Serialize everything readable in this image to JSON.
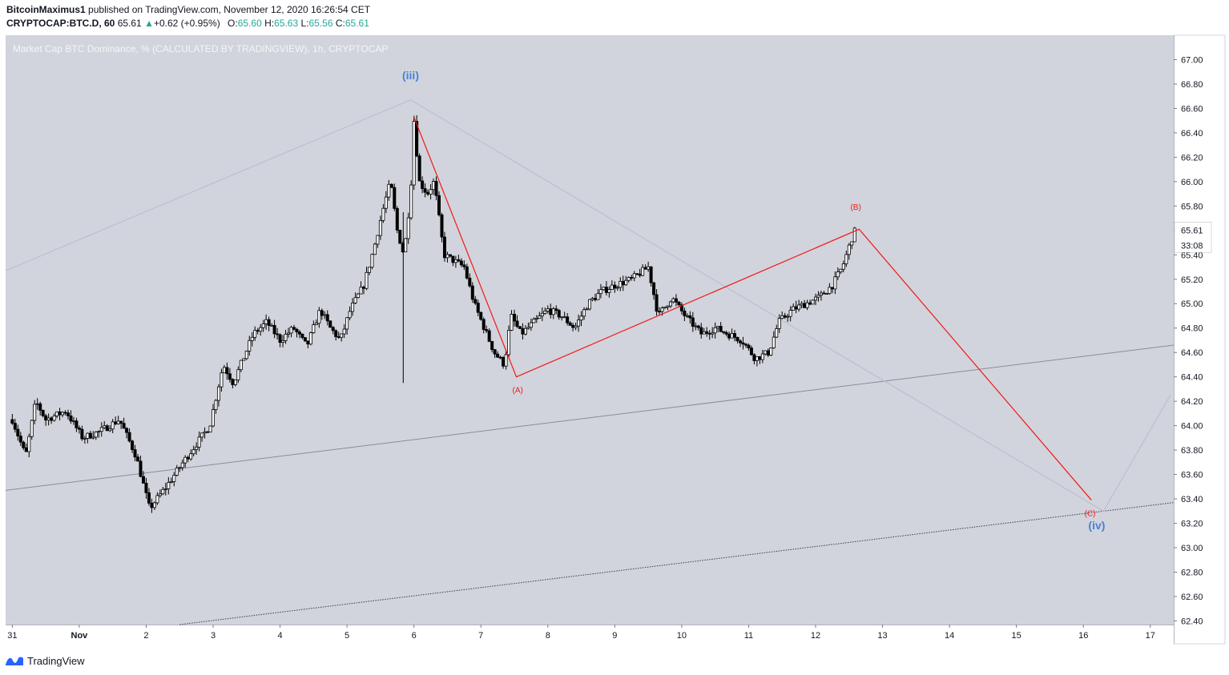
{
  "header": {
    "author": "BitcoinMaximus1",
    "published_text": "published on TradingView.com, November 12, 2020 16:26:54 CET"
  },
  "ticker": {
    "symbol": "CRYPTOCAP:BTC.D, 60",
    "last": "65.61",
    "change_arrow": "▲",
    "change": "+0.62 (+0.95%)",
    "open_label": "O:",
    "open": "65.60",
    "high_label": "H:",
    "high": "65.63",
    "low_label": "L:",
    "low": "65.56",
    "close_label": "C:",
    "close": "65.61"
  },
  "footer": {
    "brand": "TradingView",
    "logo_icon": "tradingview-logo-icon"
  },
  "colors": {
    "plot_bg": "#d1d4dc",
    "wave_label": "#4a7fd8",
    "abc_red": "#f21818",
    "candle": "#000000",
    "price_tag_bg": "#ffffff"
  },
  "chart_data": {
    "type": "candlestick",
    "title": "Market Cap BTC Dominance, % (CALCULATED BY TRADINGVIEW), 1h, CRYPTOCAP",
    "x_tick_labels": [
      "31",
      "Nov",
      "2",
      "3",
      "4",
      "5",
      "6",
      "7",
      "8",
      "9",
      "10",
      "11",
      "12",
      "13",
      "14",
      "15",
      "16",
      "17"
    ],
    "x_tick_days": [
      -1,
      0,
      1,
      2,
      3,
      4,
      5,
      6,
      7,
      8,
      9,
      10,
      11,
      12,
      13,
      14,
      15,
      16
    ],
    "xlim_days": [
      -1.1,
      16.35
    ],
    "y_tick_labels": [
      "67.00",
      "66.80",
      "66.60",
      "66.40",
      "66.20",
      "66.00",
      "65.80",
      "65.60",
      "65.40",
      "65.20",
      "65.00",
      "64.80",
      "64.60",
      "64.40",
      "64.20",
      "64.00",
      "63.80",
      "63.60",
      "63.40",
      "63.20",
      "63.00",
      "62.80",
      "62.60",
      "62.40"
    ],
    "ylim": [
      62.37,
      67.2
    ],
    "last_price": "65.61",
    "countdown": "33:08",
    "price_path": [
      [
        -1.0,
        64.05
      ],
      [
        -0.8,
        63.75
      ],
      [
        -0.65,
        64.2
      ],
      [
        -0.5,
        64.05
      ],
      [
        -0.2,
        64.12
      ],
      [
        0.05,
        63.9
      ],
      [
        0.3,
        63.95
      ],
      [
        0.6,
        64.05
      ],
      [
        0.85,
        63.75
      ],
      [
        1.05,
        63.32
      ],
      [
        1.3,
        63.5
      ],
      [
        1.55,
        63.7
      ],
      [
        1.75,
        63.85
      ],
      [
        1.95,
        64.0
      ],
      [
        2.15,
        64.5
      ],
      [
        2.3,
        64.35
      ],
      [
        2.45,
        64.55
      ],
      [
        2.6,
        64.75
      ],
      [
        2.8,
        64.85
      ],
      [
        3.0,
        64.7
      ],
      [
        3.2,
        64.8
      ],
      [
        3.4,
        64.65
      ],
      [
        3.6,
        64.95
      ],
      [
        3.75,
        64.8
      ],
      [
        3.9,
        64.7
      ],
      [
        4.05,
        64.95
      ],
      [
        4.25,
        65.15
      ],
      [
        4.4,
        65.45
      ],
      [
        4.55,
        65.8
      ],
      [
        4.65,
        66.0
      ],
      [
        4.75,
        65.6
      ],
      [
        4.85,
        65.4
      ],
      [
        4.95,
        65.9
      ],
      [
        5.0,
        66.5
      ],
      [
        5.08,
        66.0
      ],
      [
        5.2,
        65.9
      ],
      [
        5.3,
        66.0
      ],
      [
        5.45,
        65.4
      ],
      [
        5.6,
        65.35
      ],
      [
        5.75,
        65.3
      ],
      [
        5.9,
        65.0
      ],
      [
        6.05,
        64.8
      ],
      [
        6.2,
        64.6
      ],
      [
        6.35,
        64.5
      ],
      [
        6.45,
        64.9
      ],
      [
        6.6,
        64.75
      ],
      [
        6.8,
        64.85
      ],
      [
        7.0,
        64.95
      ],
      [
        7.2,
        64.9
      ],
      [
        7.4,
        64.8
      ],
      [
        7.6,
        65.0
      ],
      [
        7.8,
        65.1
      ],
      [
        8.0,
        65.15
      ],
      [
        8.25,
        65.2
      ],
      [
        8.5,
        65.3
      ],
      [
        8.65,
        64.9
      ],
      [
        8.85,
        65.05
      ],
      [
        9.05,
        64.9
      ],
      [
        9.3,
        64.75
      ],
      [
        9.5,
        64.8
      ],
      [
        9.7,
        64.75
      ],
      [
        9.9,
        64.7
      ],
      [
        10.1,
        64.55
      ],
      [
        10.3,
        64.6
      ],
      [
        10.45,
        64.85
      ],
      [
        10.65,
        64.95
      ],
      [
        10.85,
        65.0
      ],
      [
        11.05,
        65.05
      ],
      [
        11.25,
        65.15
      ],
      [
        11.4,
        65.3
      ],
      [
        11.55,
        65.55
      ],
      [
        11.6,
        65.61
      ]
    ],
    "wave_labels": [
      {
        "text": "(iii)",
        "day": 4.95,
        "value": 66.84,
        "color": "blue"
      },
      {
        "text": "(iv)",
        "day": 15.2,
        "value": 63.15,
        "color": "blue"
      },
      {
        "text": "(A)",
        "day": 6.55,
        "value": 64.27,
        "color": "red"
      },
      {
        "text": "(B)",
        "day": 11.6,
        "value": 65.77,
        "color": "red"
      },
      {
        "text": "(C)",
        "day": 15.1,
        "value": 63.26,
        "color": "red"
      }
    ],
    "abc_path": [
      [
        5.0,
        66.53
      ],
      [
        6.53,
        64.4
      ],
      [
        11.65,
        65.61
      ],
      [
        15.12,
        63.39
      ]
    ],
    "wave_path": [
      [
        -1.1,
        65.27
      ],
      [
        4.95,
        66.67
      ],
      [
        15.3,
        63.3
      ],
      [
        16.3,
        64.25
      ]
    ],
    "channel_lines": [
      {
        "from": [
          -1.1,
          63.47
        ],
        "to": [
          16.35,
          64.66
        ],
        "style": "solid"
      },
      {
        "from": [
          1.5,
          62.37
        ],
        "to": [
          16.35,
          63.37
        ],
        "style": "dotted"
      }
    ]
  }
}
